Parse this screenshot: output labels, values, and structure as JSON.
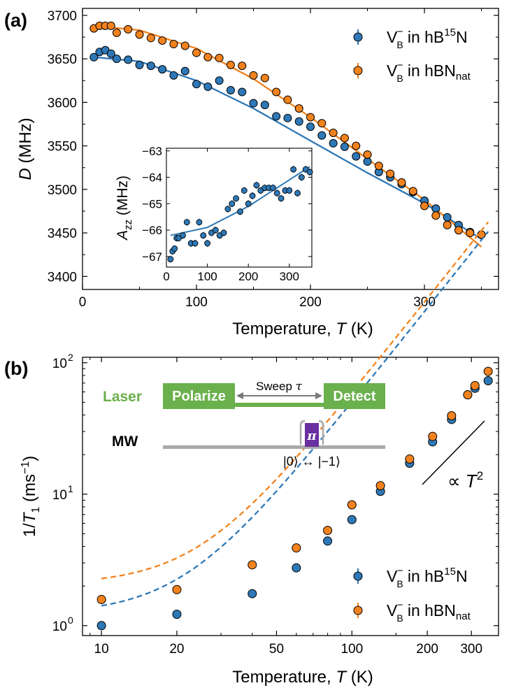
{
  "chart_data": [
    {
      "panel_label": "(a)",
      "type": "scatter",
      "xlabel_prefix": "Temperature, ",
      "xlabel_var": "T",
      "xlabel_suffix": " (K)",
      "ylabel_var": "D",
      "ylabel_suffix": " (MHz)",
      "xlim": [
        0,
        365
      ],
      "ylim": [
        3385,
        3708
      ],
      "xticks": [
        0,
        100,
        200,
        300
      ],
      "yticks": [
        3400,
        3450,
        3500,
        3550,
        3600,
        3650,
        3700
      ],
      "series": [
        {
          "name": "hB15N",
          "legend": {
            "base": "V",
            "sub": "B",
            "sup": "−",
            "mid": " in hB",
            "iso": "15",
            "tail": "N",
            "tailsub": ""
          },
          "color": "#2e78b7",
          "x": [
            10,
            15,
            20,
            25,
            30,
            40,
            50,
            60,
            70,
            80,
            90,
            100,
            110,
            120,
            130,
            140,
            150,
            160,
            170,
            180,
            190,
            200,
            210,
            220,
            230,
            240,
            250,
            260,
            270,
            280,
            290,
            300,
            310,
            320,
            330,
            340,
            350
          ],
          "y": [
            3652,
            3658,
            3660,
            3656,
            3650,
            3649,
            3643,
            3642,
            3638,
            3631,
            3636,
            3621,
            3618,
            3625,
            3614,
            3612,
            3599,
            3597,
            3584,
            3582,
            3578,
            3572,
            3562,
            3553,
            3549,
            3538,
            3532,
            3520,
            3514,
            3506,
            3497,
            3487,
            3478,
            3468,
            3459,
            3451,
            3448
          ],
          "fit": {
            "x": [
              10,
              50,
              100,
              150,
              200,
              250,
              300,
              350
            ],
            "y": [
              3652,
              3647,
              3625,
              3593,
              3556,
              3519,
              3484,
              3443
            ]
          }
        },
        {
          "name": "hBNnat",
          "legend": {
            "base": "V",
            "sub": "B",
            "sup": "−",
            "mid": " in hBN",
            "iso": "",
            "tail": "",
            "tailsub": "nat"
          },
          "color": "#f2821d",
          "x": [
            10,
            15,
            20,
            25,
            30,
            40,
            50,
            60,
            70,
            80,
            90,
            100,
            110,
            120,
            130,
            140,
            150,
            160,
            170,
            180,
            190,
            200,
            210,
            220,
            230,
            240,
            250,
            260,
            270,
            280,
            290,
            300,
            310,
            320,
            330,
            340,
            350
          ],
          "y": [
            3685,
            3688,
            3688,
            3688,
            3680,
            3684,
            3678,
            3674,
            3671,
            3667,
            3665,
            3657,
            3652,
            3651,
            3643,
            3642,
            3631,
            3628,
            3612,
            3603,
            3593,
            3583,
            3576,
            3565,
            3559,
            3550,
            3540,
            3527,
            3518,
            3508,
            3498,
            3481,
            3470,
            3459,
            3453,
            3450,
            3448
          ],
          "fit": {
            "x": [
              10,
              50,
              100,
              150,
              200,
              250,
              300,
              350
            ],
            "y": [
              3688,
              3683,
              3662,
              3627,
              3583,
              3535,
              3488,
              3434
            ]
          }
        }
      ],
      "inset": {
        "ylabel_base": "A",
        "ylabel_sub": "zz",
        "ylabel_suffix": " (MHz)",
        "xlim": [
          0,
          355
        ],
        "ylim": [
          -67.4,
          -62.9
        ],
        "xticks": [
          0,
          100,
          200,
          300
        ],
        "yticks": [
          -67,
          -66,
          -65,
          -64,
          -63
        ],
        "x": [
          10,
          15,
          20,
          25,
          30,
          40,
          50,
          60,
          70,
          80,
          90,
          100,
          110,
          120,
          130,
          140,
          150,
          160,
          170,
          180,
          190,
          200,
          210,
          220,
          230,
          240,
          250,
          260,
          270,
          280,
          290,
          300,
          310,
          320,
          330,
          340,
          350
        ],
        "y": [
          -67.1,
          -66.8,
          -66.7,
          -66.3,
          -66.3,
          -66.2,
          -65.7,
          -66.5,
          -66.5,
          -65.7,
          -66.2,
          -66.5,
          -66.1,
          -66.0,
          -66.2,
          -66.1,
          -65.2,
          -65.0,
          -64.8,
          -65.3,
          -64.5,
          -65.0,
          -64.7,
          -64.3,
          -64.5,
          -64.4,
          -64.4,
          -64.4,
          -64.6,
          -64.8,
          -64.5,
          -64.5,
          -63.7,
          -64.6,
          -64.0,
          -63.7,
          -63.8
        ],
        "fit": {
          "x": [
            10,
            100,
            200,
            300,
            350
          ],
          "y": [
            -66.2,
            -65.9,
            -65.1,
            -64.1,
            -63.6
          ]
        },
        "color": "#2e78b7"
      }
    },
    {
      "panel_label": "(b)",
      "type": "scatter",
      "xscale": "log",
      "yscale": "log",
      "xlabel_prefix": "Temperature, ",
      "xlabel_var": "T",
      "xlabel_suffix": " (K)",
      "ylabel_pre": "1/",
      "ylabel_var": "T",
      "ylabel_sub": "1",
      "ylabel_unit_pre": " (ms",
      "ylabel_unit_sup": "−1",
      "ylabel_unit_post": ")",
      "xlim": [
        8.4,
        385
      ],
      "ylim": [
        0.84,
        110
      ],
      "xticks": [
        "10",
        "20",
        "50",
        "100",
        "200",
        "300"
      ],
      "xtick_values": [
        10,
        20,
        50,
        100,
        200,
        300
      ],
      "yticks": [
        {
          "base": "10",
          "exp": "0",
          "value": 1
        },
        {
          "base": "10",
          "exp": "1",
          "value": 10
        },
        {
          "base": "10",
          "exp": "2",
          "value": 100
        }
      ],
      "series": [
        {
          "name": "hB15N",
          "legend": {
            "base": "V",
            "sub": "B",
            "sup": "−",
            "mid": " in hB",
            "iso": "15",
            "tail": "N",
            "tailsub": ""
          },
          "color": "#2e78b7",
          "x": [
            10,
            20,
            40,
            60,
            80,
            100,
            130,
            170,
            210,
            250,
            290,
            310,
            350
          ],
          "y": [
            1.0,
            1.22,
            1.75,
            2.75,
            4.4,
            6.4,
            10.5,
            17.2,
            25,
            37,
            57,
            64,
            73
          ],
          "fit_model": {
            "a": 1.22,
            "b": 0.00078,
            "n": 2.4
          }
        },
        {
          "name": "hBNnat",
          "legend": {
            "base": "V",
            "sub": "B",
            "sup": "−",
            "mid": " in hBN",
            "iso": "",
            "tail": "",
            "tailsub": "nat"
          },
          "color": "#f2821d",
          "x": [
            10,
            20,
            40,
            60,
            80,
            100,
            130,
            170,
            210,
            250,
            290,
            310,
            350
          ],
          "y": [
            1.58,
            1.88,
            2.9,
            3.9,
            5.3,
            8.3,
            11.6,
            18.5,
            27.5,
            39.5,
            57,
            67,
            86
          ],
          "fit_model": {
            "a": 2.05,
            "b": 0.00092,
            "n": 2.4
          }
        }
      ],
      "annotation": {
        "text_pre": "∝ ",
        "text_var": "T",
        "text_sup": "2"
      },
      "pulse_scheme": {
        "laser_label": "Laser",
        "mw_label": "MW",
        "polarize_label": "Polarize",
        "detect_label": "Detect",
        "sweep_label": "Sweep ",
        "sweep_var": "τ",
        "pi_label": "π",
        "transition_label": "|0⟩ ↔ |−1⟩",
        "laser_color": "#6ab04c",
        "pulse_color": "#6a2fa0"
      }
    }
  ]
}
